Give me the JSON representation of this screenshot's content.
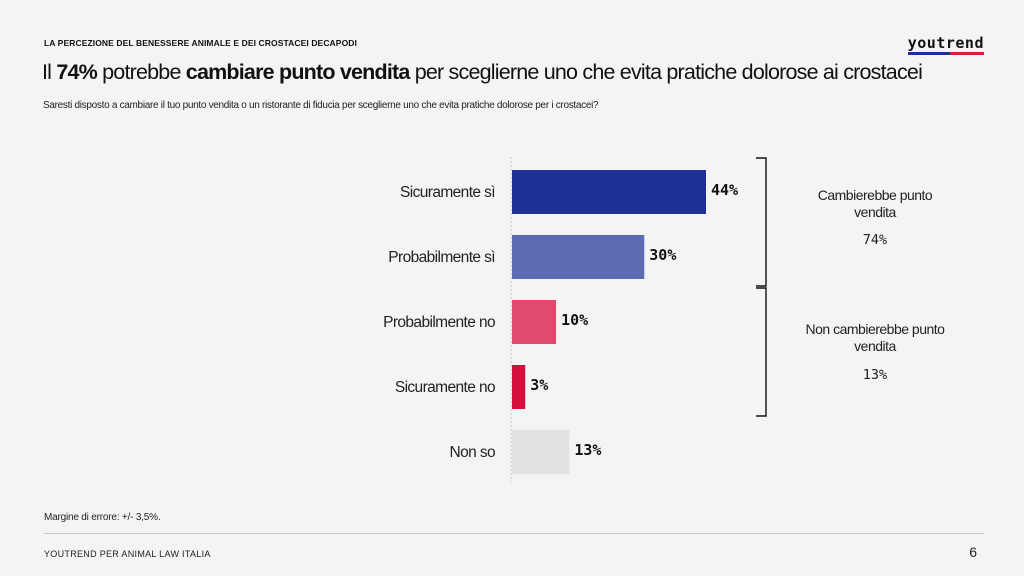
{
  "header": {
    "kicker": "LA PERCEZIONE DEL BENESSERE ANIMALE E DEI CROSTACEI DECAPODI",
    "logo": "youtrend",
    "title_parts": {
      "p1": "Il ",
      "p2": "74%",
      "p3": " potrebbe ",
      "p4": "cambiare punto vendita",
      "p5": " per sceglierne uno che evita pratiche dolorose ai crostacei"
    },
    "subtitle": "Saresti disposto a cambiare il tuo punto vendita o un ristorante di fiducia per sceglierne uno che evita pratiche dolorose per i crostacei?"
  },
  "chart_data": {
    "type": "bar",
    "orientation": "horizontal",
    "categories": [
      "Sicuramente sì",
      "Probabilmente sì",
      "Probabilmente no",
      "Sicuramente no",
      "Non so"
    ],
    "values": [
      44,
      30,
      10,
      3,
      13
    ],
    "value_labels": [
      "44%",
      "30%",
      "10%",
      "3%",
      "13%"
    ],
    "colors": [
      "#1e2f98",
      "#5d6bb5",
      "#e04a6e",
      "#d4103a",
      "#e2e2e4"
    ],
    "xlim": [
      0,
      44
    ],
    "groups": [
      {
        "label": "Cambierebbe punto vendita",
        "value": "74%",
        "members": [
          0,
          1
        ]
      },
      {
        "label": "Non cambierebbe punto vendita",
        "value": "13%",
        "members": [
          2,
          3
        ]
      }
    ]
  },
  "footer": {
    "note": "Margine di errore: +/- 3,5%.",
    "source": "YOUTREND PER ANIMAL LAW ITALIA",
    "page": "6"
  }
}
